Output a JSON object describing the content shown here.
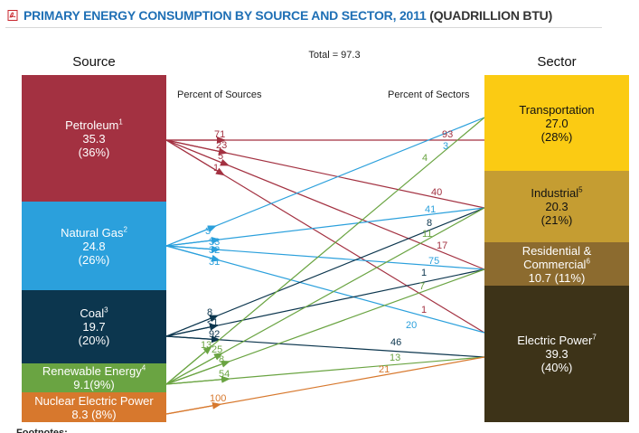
{
  "header": {
    "title": "PRIMARY ENERGY CONSUMPTION BY SOURCE AND SECTOR, 2011",
    "unit": "(QUADRILLION BTU)"
  },
  "total_label": "Total = 97.3",
  "source_heading": "Source",
  "sector_heading": "Sector",
  "percent_sources_label": "Percent of Sources",
  "percent_sectors_label": "Percent of Sectors",
  "footnotes_label": "Footnotes:",
  "colors": {
    "petroleum": "#a33141",
    "natural_gas": "#2ba0dc",
    "coal": "#0c364e",
    "renewable": "#6aa442",
    "nuclear": "#d7782d",
    "transportation": "#fbcb13",
    "industrial": "#c59d32",
    "residential": "#8c6b2f",
    "electric": "#3d3318"
  },
  "sources": [
    {
      "key": "petroleum",
      "name": "Petroleum",
      "sup": "1",
      "value": "35.3",
      "pct": "(36%)"
    },
    {
      "key": "natural_gas",
      "name": "Natural Gas",
      "sup": "2",
      "value": "24.8",
      "pct": "(26%)"
    },
    {
      "key": "coal",
      "name": "Coal",
      "sup": "3",
      "value": "19.7",
      "pct": "(20%)"
    },
    {
      "key": "renewable",
      "name": "Renewable Energy",
      "sup": "4",
      "value": "9.1(9%)"
    },
    {
      "key": "nuclear",
      "name": "Nuclear Electric Power",
      "value": "8.3 (8%)"
    }
  ],
  "sectors": [
    {
      "key": "transportation",
      "name": "Transportation",
      "value": "27.0",
      "pct": "(28%)"
    },
    {
      "key": "industrial",
      "name": "Industrial",
      "sup": "5",
      "value": "20.3",
      "pct": "(21%)"
    },
    {
      "key": "residential",
      "name": "Residential &",
      "name2": "Commercial",
      "sup": "6",
      "value": "10.7 (11%)"
    },
    {
      "key": "electric",
      "name": "Electric Power",
      "sup": "7",
      "value": "39.3",
      "pct": "(40%)"
    }
  ],
  "chart_data": {
    "type": "sankey",
    "title": "PRIMARY ENERGY CONSUMPTION BY SOURCE AND SECTOR, 2011",
    "unit": "QUADRILLION BTU",
    "total": 97.3,
    "flows": [
      {
        "source": "Petroleum",
        "sector": "Transportation",
        "pct_of_source": "71",
        "pct_of_sector": "93"
      },
      {
        "source": "Petroleum",
        "sector": "Industrial",
        "pct_of_source": "23",
        "pct_of_sector": "40"
      },
      {
        "source": "Petroleum",
        "sector": "Residential & Commercial",
        "pct_of_source": "5",
        "pct_of_sector": "17"
      },
      {
        "source": "Petroleum",
        "sector": "Electric Power",
        "pct_of_source": "1",
        "pct_of_sector": "1"
      },
      {
        "source": "Natural Gas",
        "sector": "Transportation",
        "pct_of_source": "3",
        "pct_of_sector": "3"
      },
      {
        "source": "Natural Gas",
        "sector": "Industrial",
        "pct_of_source": "33",
        "pct_of_sector": "41"
      },
      {
        "source": "Natural Gas",
        "sector": "Residential & Commercial",
        "pct_of_source": "32",
        "pct_of_sector": "75"
      },
      {
        "source": "Natural Gas",
        "sector": "Electric Power",
        "pct_of_source": "31",
        "pct_of_sector": "20"
      },
      {
        "source": "Coal",
        "sector": "Industrial",
        "pct_of_source": "8",
        "pct_of_sector": "8"
      },
      {
        "source": "Coal",
        "sector": "Residential & Commercial",
        "pct_of_source": "<1",
        "pct_of_sector": "1"
      },
      {
        "source": "Coal",
        "sector": "Electric Power",
        "pct_of_source": "92",
        "pct_of_sector": "46"
      },
      {
        "source": "Renewable Energy",
        "sector": "Transportation",
        "pct_of_source": "13",
        "pct_of_sector": "4"
      },
      {
        "source": "Renewable Energy",
        "sector": "Industrial",
        "pct_of_source": "25",
        "pct_of_sector": "11"
      },
      {
        "source": "Renewable Energy",
        "sector": "Residential & Commercial",
        "pct_of_source": "8",
        "pct_of_sector": "7"
      },
      {
        "source": "Renewable Energy",
        "sector": "Electric Power",
        "pct_of_source": "54",
        "pct_of_sector": "13"
      },
      {
        "source": "Nuclear Electric Power",
        "sector": "Electric Power",
        "pct_of_source": "100",
        "pct_of_sector": "21"
      }
    ]
  }
}
